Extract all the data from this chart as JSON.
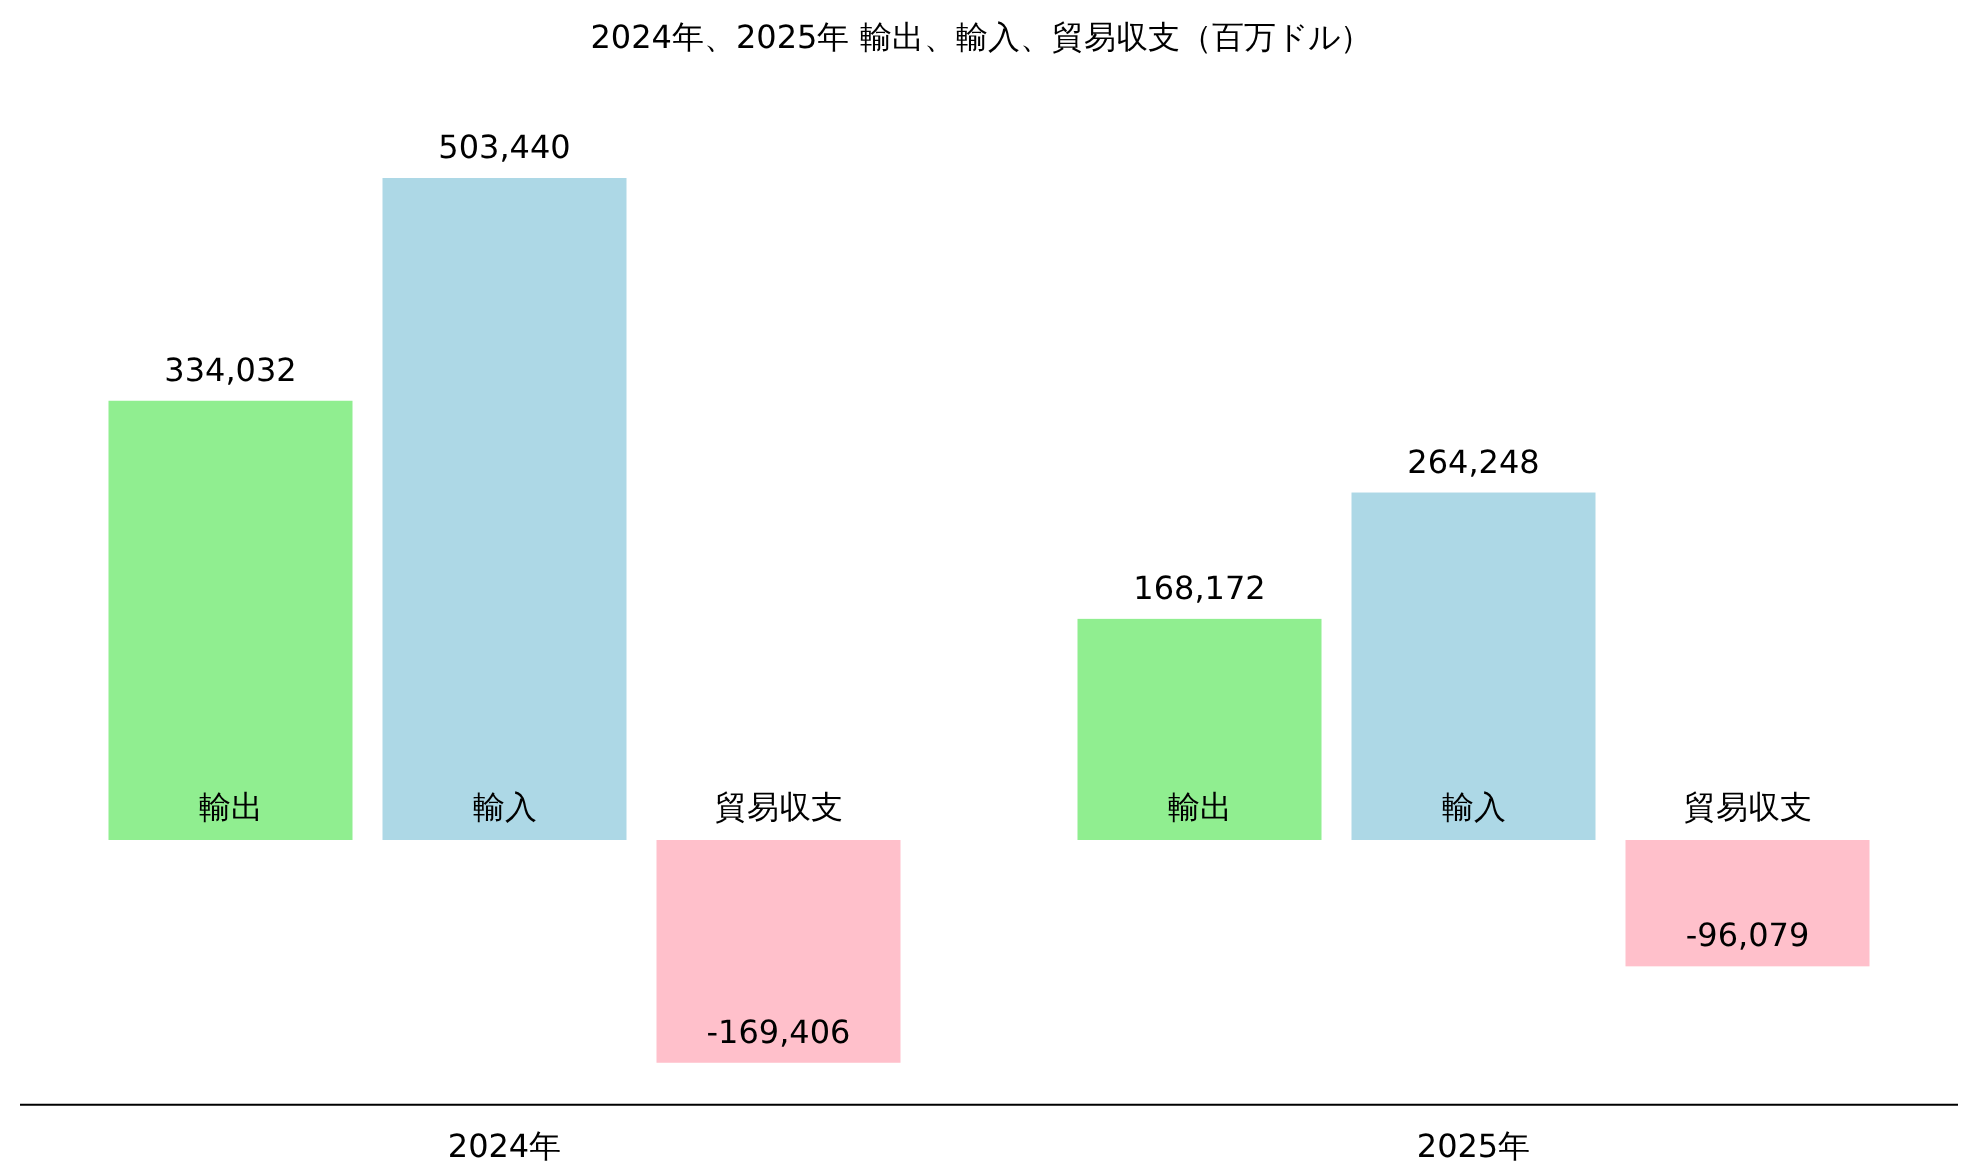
{
  "chart_data": {
    "type": "bar",
    "title": "2024年、2025年 輸出、輸入、貿易収支（百万ドル）",
    "categories": [
      "2024年",
      "2025年"
    ],
    "series": [
      {
        "name": "輸出",
        "color": "#90ee90",
        "values": [
          334032,
          168172
        ],
        "value_labels": [
          "334,032",
          "168,172"
        ]
      },
      {
        "name": "輸入",
        "color": "#add8e6",
        "values": [
          503440,
          264248
        ],
        "value_labels": [
          "503,440",
          "264,248"
        ]
      },
      {
        "name": "貿易収支",
        "color": "#ffc0cb",
        "values": [
          -169406,
          -96079
        ],
        "value_labels": [
          "-169,406",
          "-96,079"
        ]
      }
    ]
  }
}
